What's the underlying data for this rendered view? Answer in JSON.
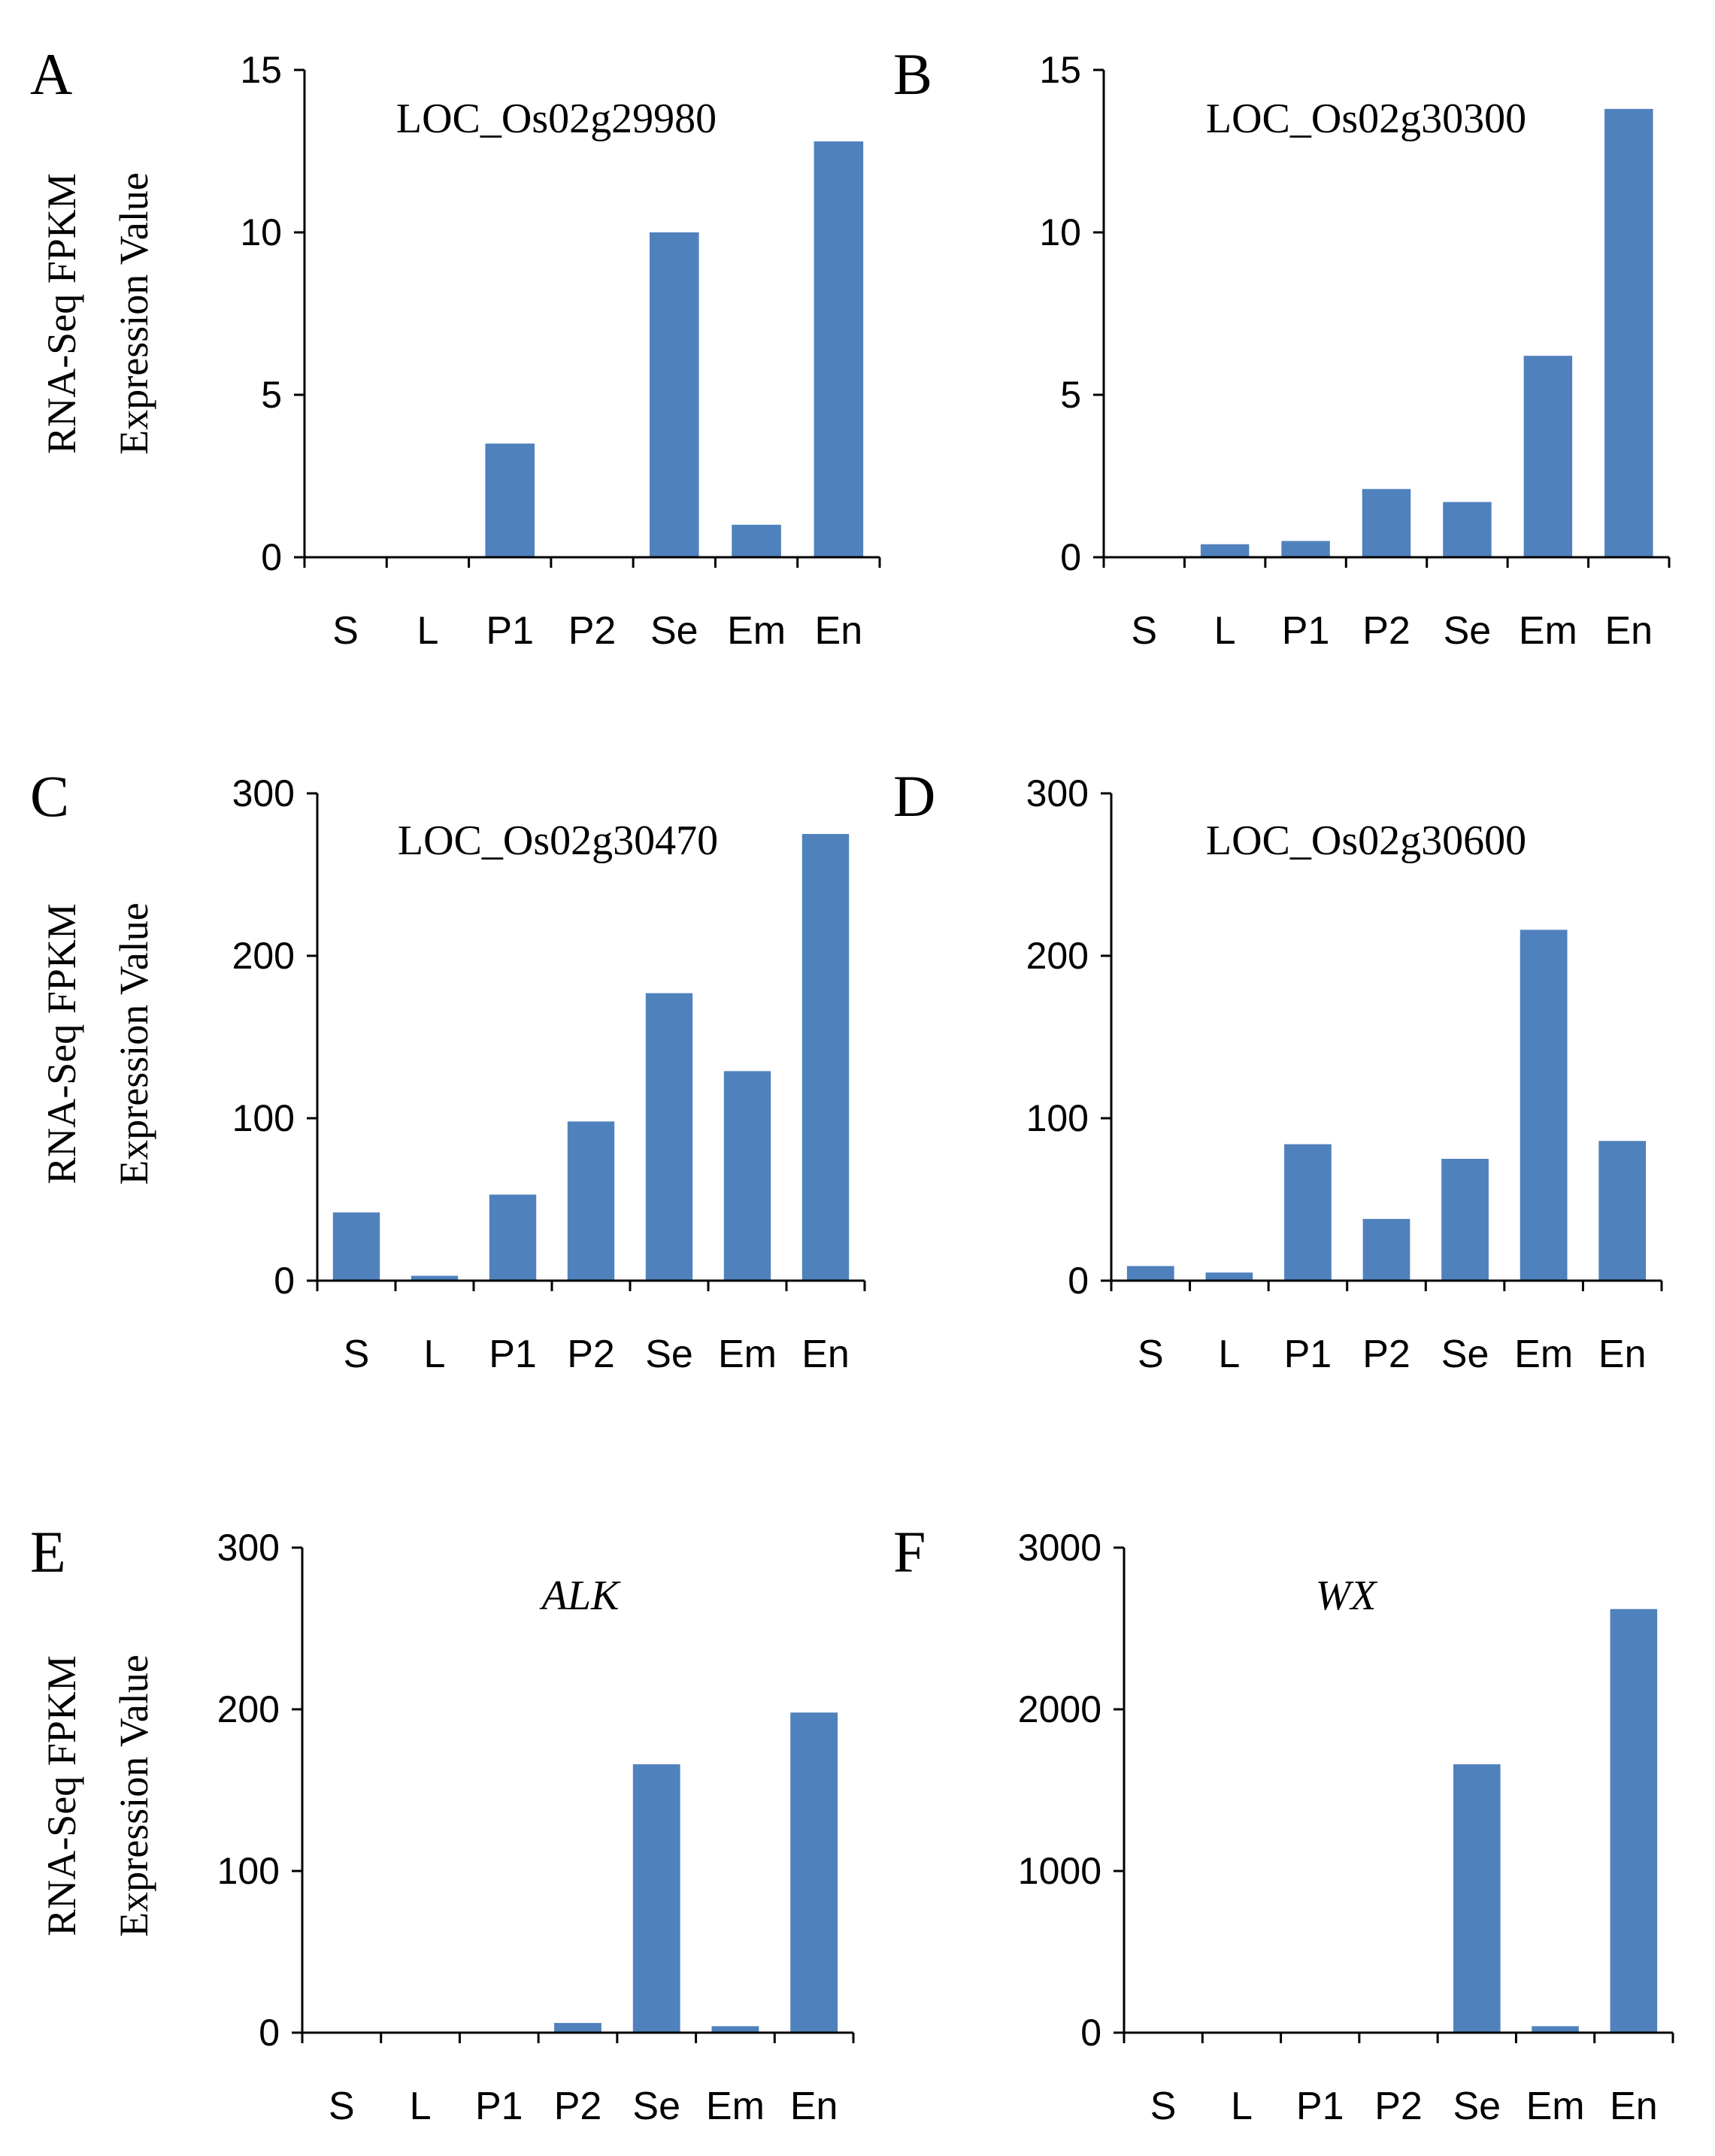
{
  "figure": {
    "ylabel_line1": "RNA-Seq FPKM",
    "ylabel_line2": "Expression Value",
    "bar_color": "#4F81BD",
    "axis_color": "#000000"
  },
  "chart_data": [
    {
      "panel": "A",
      "type": "bar",
      "title": "LOC_Os02g29980",
      "title_italic": false,
      "categories": [
        "S",
        "L",
        "P1",
        "P2",
        "Se",
        "Em",
        "En"
      ],
      "values": [
        0,
        0,
        3.5,
        0,
        10,
        1,
        12.8
      ],
      "ylim": [
        0,
        15
      ],
      "yticks": [
        0,
        5,
        10,
        15
      ],
      "xlabel": "",
      "ylabel": "RNA-Seq FPKM Expression Value"
    },
    {
      "panel": "B",
      "type": "bar",
      "title": "LOC_Os02g30300",
      "title_italic": false,
      "categories": [
        "S",
        "L",
        "P1",
        "P2",
        "Se",
        "Em",
        "En"
      ],
      "values": [
        0,
        0.4,
        0.5,
        2.1,
        1.7,
        6.2,
        13.8
      ],
      "ylim": [
        0,
        15
      ],
      "yticks": [
        0,
        5,
        10,
        15
      ],
      "xlabel": "",
      "ylabel": ""
    },
    {
      "panel": "C",
      "type": "bar",
      "title": "LOC_Os02g30470",
      "title_italic": false,
      "categories": [
        "S",
        "L",
        "P1",
        "P2",
        "Se",
        "Em",
        "En"
      ],
      "values": [
        42,
        3,
        53,
        98,
        177,
        129,
        275
      ],
      "ylim": [
        0,
        300
      ],
      "yticks": [
        0,
        100,
        200,
        300
      ],
      "xlabel": "",
      "ylabel": "RNA-Seq FPKM Expression Value"
    },
    {
      "panel": "D",
      "type": "bar",
      "title": "LOC_Os02g30600",
      "title_italic": false,
      "categories": [
        "S",
        "L",
        "P1",
        "P2",
        "Se",
        "Em",
        "En"
      ],
      "values": [
        9,
        5,
        84,
        38,
        75,
        216,
        86
      ],
      "ylim": [
        0,
        300
      ],
      "yticks": [
        0,
        100,
        200,
        300
      ],
      "xlabel": "",
      "ylabel": ""
    },
    {
      "panel": "E",
      "type": "bar",
      "title": "ALK",
      "title_italic": true,
      "categories": [
        "S",
        "L",
        "P1",
        "P2",
        "Se",
        "Em",
        "En"
      ],
      "values": [
        0,
        0,
        0,
        6,
        166,
        4,
        198
      ],
      "ylim": [
        0,
        300
      ],
      "yticks": [
        0,
        100,
        200,
        300
      ],
      "xlabel": "",
      "ylabel": "RNA-Seq FPKM Expression Value"
    },
    {
      "panel": "F",
      "type": "bar",
      "title": "WX",
      "title_italic": true,
      "categories": [
        "S",
        "L",
        "P1",
        "P2",
        "Se",
        "Em",
        "En"
      ],
      "values": [
        0,
        0,
        0,
        0,
        1660,
        40,
        2620
      ],
      "ylim": [
        0,
        3000
      ],
      "yticks": [
        0,
        1000,
        2000,
        3000
      ],
      "xlabel": "",
      "ylabel": ""
    }
  ]
}
